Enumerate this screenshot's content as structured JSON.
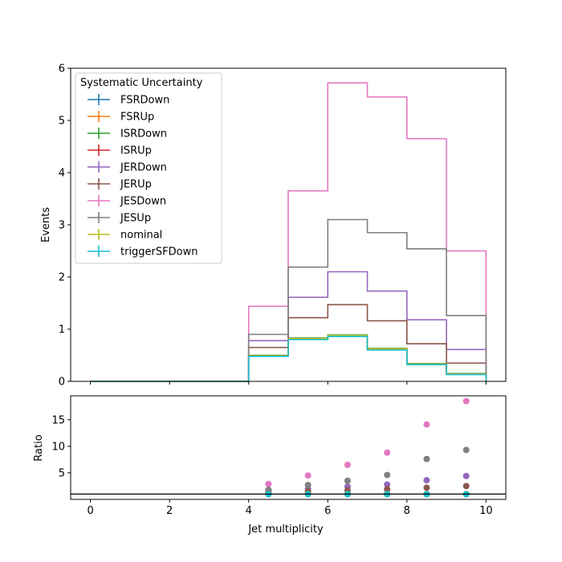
{
  "chart_data": {
    "type": "step-histogram-with-ratio",
    "xlabel": "Jet multiplicity",
    "ylabel_main": "Events",
    "ylabel_ratio": "Ratio",
    "xlim": [
      -0.5,
      10.5
    ],
    "ylim_main": [
      0,
      6
    ],
    "ylim_ratio": [
      0,
      19.5
    ],
    "x_ticks": [
      "0",
      "2",
      "4",
      "6",
      "8",
      "10"
    ],
    "y_ticks_main": [
      "0",
      "1",
      "2",
      "3",
      "4",
      "5",
      "6"
    ],
    "y_ticks_ratio": [
      "5",
      "10",
      "15"
    ],
    "ratio_reference_line": 1,
    "legend_title": "Systematic Uncertainty",
    "legend_position": "upper-left",
    "bin_edges": [
      0,
      1,
      2,
      3,
      4,
      5,
      6,
      7,
      8,
      9,
      10
    ],
    "ratio_x": [
      4.5,
      5.5,
      6.5,
      7.5,
      8.5,
      9.5
    ],
    "series": [
      {
        "name": "FSRDown",
        "color": "#1f77b4",
        "values": [
          0,
          0,
          0,
          0,
          0.49,
          0.82,
          0.88,
          0.62,
          0.33,
          0.14
        ],
        "ratio": [
          1.0,
          1.0,
          1.0,
          1.0,
          1.0,
          1.0
        ]
      },
      {
        "name": "FSRUp",
        "color": "#ff7f0e",
        "values": [
          0,
          0,
          0,
          0,
          0.49,
          0.82,
          0.88,
          0.62,
          0.33,
          0.14
        ],
        "ratio": [
          1.0,
          1.0,
          1.0,
          1.0,
          1.0,
          1.0
        ]
      },
      {
        "name": "ISRDown",
        "color": "#2ca02c",
        "values": [
          0,
          0,
          0,
          0,
          0.5,
          0.83,
          0.89,
          0.63,
          0.34,
          0.15
        ],
        "ratio": [
          1.0,
          1.0,
          1.0,
          1.0,
          1.0,
          1.0
        ]
      },
      {
        "name": "ISRUp",
        "color": "#d62728",
        "values": [
          0,
          0,
          0,
          0,
          0.49,
          0.82,
          0.88,
          0.62,
          0.33,
          0.14
        ],
        "ratio": [
          1.0,
          1.0,
          1.0,
          1.0,
          1.0,
          1.0
        ]
      },
      {
        "name": "JERDown",
        "color": "#9467bd",
        "values": [
          0,
          0,
          0,
          0,
          0.78,
          1.61,
          2.1,
          1.73,
          1.18,
          0.61
        ],
        "ratio": [
          1.6,
          2.0,
          2.4,
          2.8,
          3.6,
          4.4
        ]
      },
      {
        "name": "JERUp",
        "color": "#8c564b",
        "values": [
          0,
          0,
          0,
          0,
          0.65,
          1.22,
          1.47,
          1.16,
          0.72,
          0.35
        ],
        "ratio": [
          1.3,
          1.5,
          1.7,
          1.9,
          2.2,
          2.5
        ]
      },
      {
        "name": "JESDown",
        "color": "#e377c2",
        "values": [
          0,
          0,
          0,
          0,
          1.44,
          3.65,
          5.72,
          5.45,
          4.65,
          2.5
        ],
        "ratio": [
          2.9,
          4.5,
          6.5,
          8.8,
          14.1,
          18.5
        ]
      },
      {
        "name": "JESUp",
        "color": "#7f7f7f",
        "values": [
          0,
          0,
          0,
          0,
          0.9,
          2.19,
          3.1,
          2.85,
          2.54,
          1.26
        ],
        "ratio": [
          1.8,
          2.7,
          3.5,
          4.6,
          7.6,
          9.3
        ]
      },
      {
        "name": "nominal",
        "color": "#bcbd22",
        "values": [
          0,
          0,
          0,
          0,
          0.49,
          0.82,
          0.88,
          0.62,
          0.33,
          0.14
        ],
        "ratio": [
          1.0,
          1.0,
          1.0,
          1.0,
          1.0,
          1.0
        ]
      },
      {
        "name": "triggerSFDown",
        "color": "#17becf",
        "values": [
          0,
          0,
          0,
          0,
          0.48,
          0.8,
          0.86,
          0.6,
          0.32,
          0.13
        ],
        "ratio": [
          0.98,
          0.98,
          0.98,
          0.98,
          0.98,
          0.98
        ]
      }
    ]
  }
}
